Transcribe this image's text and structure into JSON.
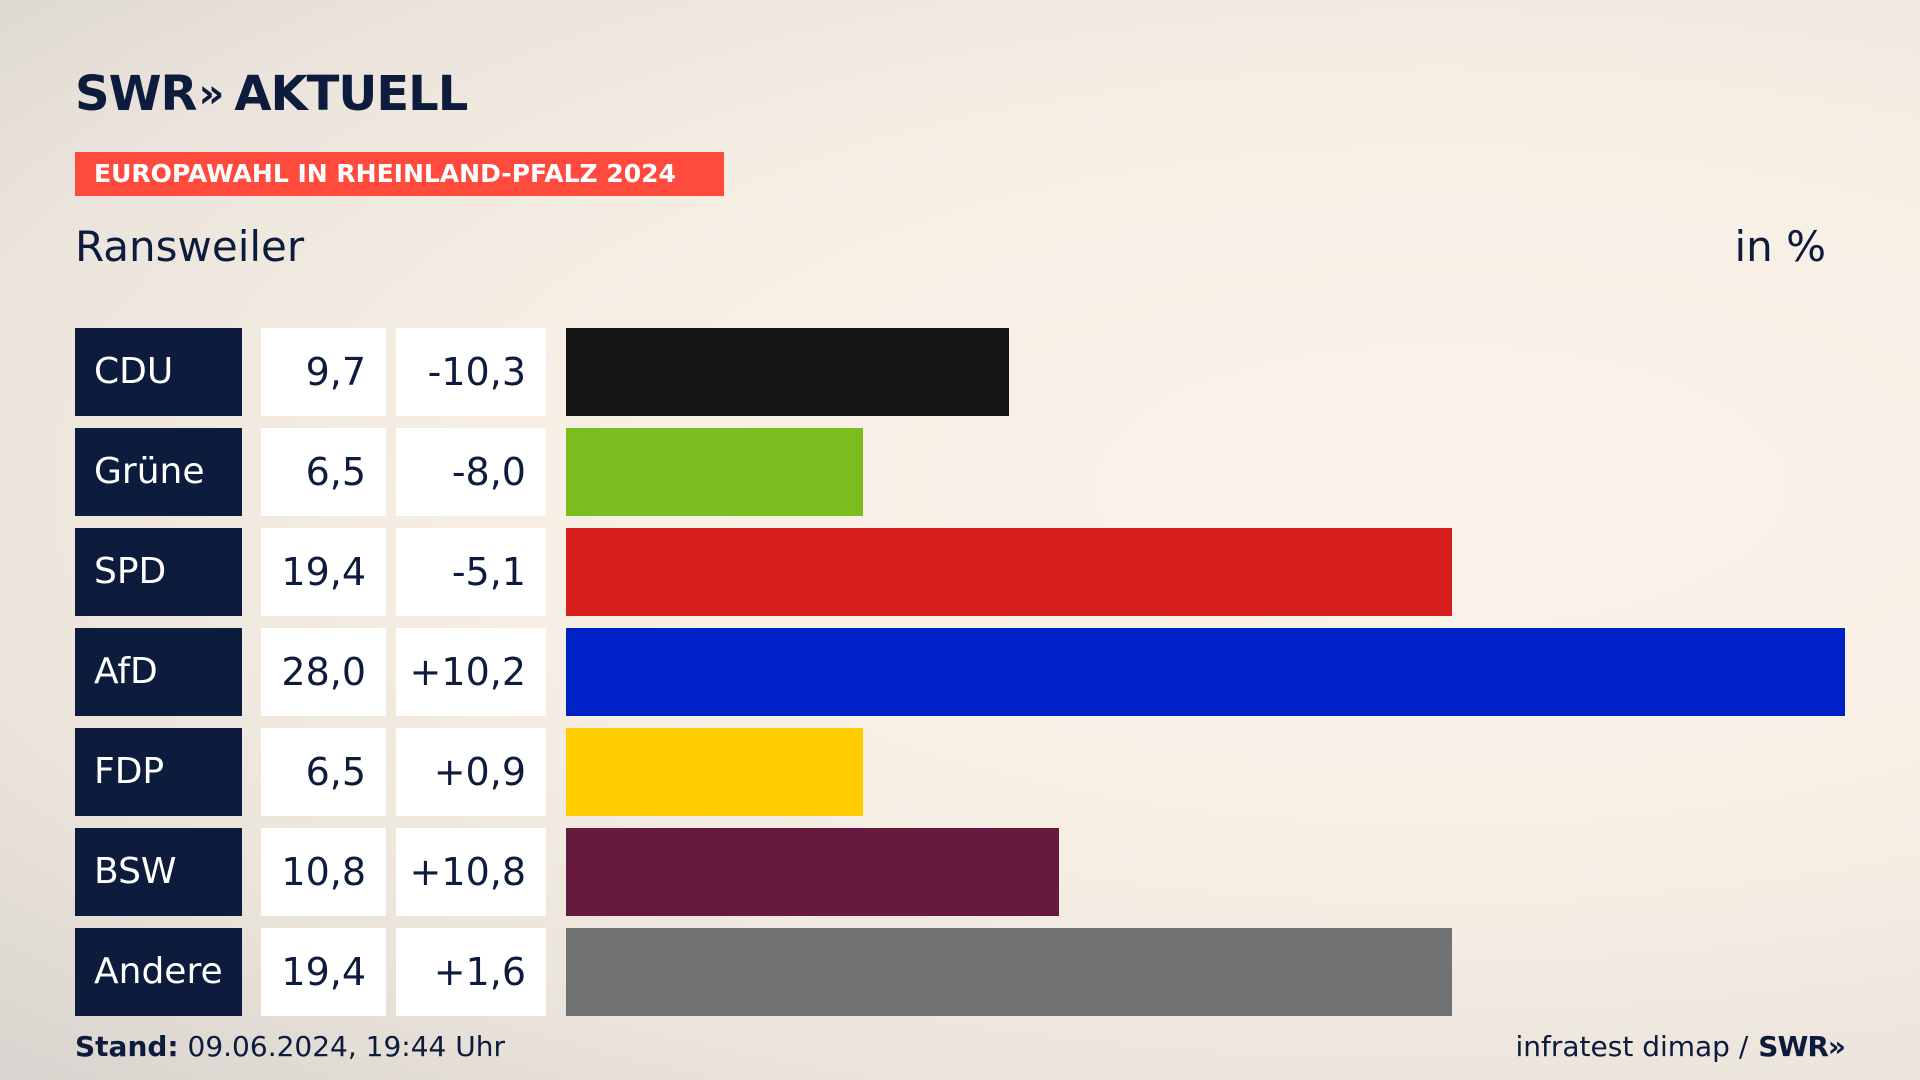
{
  "brand": {
    "logo_swr": "SWR",
    "logo_chevrons": "»",
    "logo_aktuell": "AKTUELL"
  },
  "banner": "EUROPAWAHL IN RHEINLAND-PFALZ 2024",
  "place": "Ransweiler",
  "unit": "in %",
  "chart_data": {
    "type": "bar",
    "orientation": "horizontal",
    "categories": [
      "CDU",
      "Grüne",
      "SPD",
      "AfD",
      "FDP",
      "BSW",
      "Andere"
    ],
    "values": [
      9.7,
      6.5,
      19.4,
      28.0,
      6.5,
      10.8,
      19.4
    ],
    "value_labels": [
      "9,7",
      "6,5",
      "19,4",
      "28,0",
      "6,5",
      "10,8",
      "19,4"
    ],
    "change_labels": [
      "-10,3",
      "-8,0",
      "-5,1",
      "+10,2",
      "+0,9",
      "+10,8",
      "+1,6"
    ],
    "changes": [
      -10.3,
      -8.0,
      -5.1,
      10.2,
      0.9,
      10.8,
      1.6
    ],
    "colors": [
      "#151515",
      "#7bbd1e",
      "#d81f1e",
      "#0021c8",
      "#ffcc00",
      "#661a3e",
      "#707173"
    ],
    "xlim": [
      0,
      28
    ],
    "grid": false,
    "legend": "none"
  },
  "footer": {
    "stand_label": "Stand:",
    "stand_value": "09.06.2024, 19:44 Uhr",
    "source": "infratest dimap /",
    "source_logo": "SWR»"
  }
}
